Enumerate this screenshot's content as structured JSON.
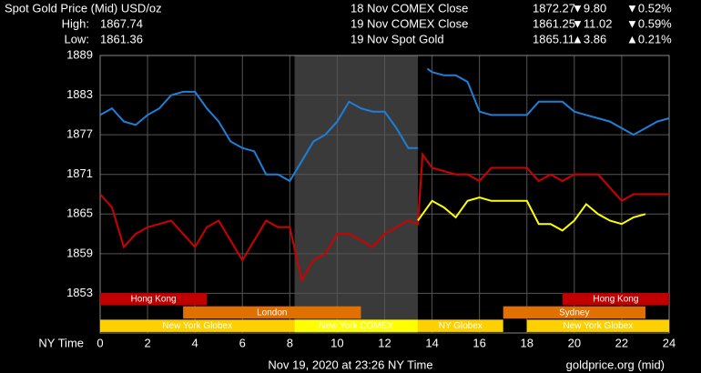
{
  "chart_data": {
    "type": "line",
    "title": "Spot Gold Price (Mid) USD/oz",
    "stats": [
      {
        "label": "High:",
        "value": "1867.74"
      },
      {
        "label": "Low:",
        "value": "1861.36"
      }
    ],
    "x_label": "NY Time",
    "footer": "Nov 19, 2020 at 23:26 NY Time",
    "source": "goldprice.org (mid)",
    "xlim": [
      0,
      24
    ],
    "xticks": [
      0,
      2,
      4,
      6,
      8,
      10,
      12,
      14,
      16,
      18,
      20,
      22,
      24
    ],
    "ylim": [
      1847,
      1889
    ],
    "yticks": [
      1853,
      1859,
      1865,
      1871,
      1877,
      1883,
      1889
    ],
    "grid": true,
    "shade": [
      8.2,
      13.4
    ],
    "shade_color": "#3a3a3a",
    "x": [
      0,
      0.5,
      1,
      1.5,
      2,
      2.5,
      3,
      3.5,
      4,
      4.5,
      5,
      5.5,
      6,
      6.5,
      7,
      7.5,
      8,
      8.5,
      9,
      9.5,
      10,
      10.5,
      11,
      11.5,
      12,
      12.5,
      13,
      13.4,
      13.6,
      13.8,
      14,
      14.5,
      15,
      15.5,
      16,
      16.5,
      17,
      17.5,
      18,
      18.5,
      19,
      19.5,
      20,
      20.5,
      21,
      21.5,
      22,
      22.5,
      23,
      23.5,
      24
    ],
    "series": [
      {
        "name": "18 Nov COMEX Close",
        "color": "#1e7fd8",
        "close": "1872.27",
        "change": "▼9.80",
        "pct": "▼0.52%",
        "change_color": "#ff2020",
        "values": [
          1880,
          1881,
          1879,
          1878.5,
          1880,
          1881,
          1883,
          1883.5,
          1883.5,
          1881,
          1879,
          1876,
          1875,
          1874.5,
          1871,
          1871,
          1870,
          1873,
          1876,
          1877,
          1879,
          1882,
          1881,
          1880.5,
          1880.5,
          1878,
          1875,
          1875,
          null,
          1887,
          1886.5,
          1886,
          1886,
          1885,
          1880.5,
          1880,
          1880,
          1880,
          1880,
          1882,
          1882,
          1882,
          1880.5,
          1880,
          1879.5,
          1879,
          1878,
          1877,
          1878,
          1879,
          1879.5
        ]
      },
      {
        "name": "19 Nov COMEX Close",
        "color": "#d00000",
        "close": "1861.25",
        "change": "▼11.02",
        "pct": "▼0.59%",
        "change_color": "#ff2020",
        "values": [
          1868,
          1866,
          1860,
          1862,
          1863,
          1863.5,
          1864,
          1862,
          1860,
          1863,
          1864,
          1861,
          1858,
          1861,
          1864,
          1863,
          1863,
          1855,
          1858,
          1859,
          1862,
          1862,
          1861,
          1860,
          1862,
          1863,
          1864,
          1863.5,
          1874,
          1873,
          1872,
          1871.5,
          1871,
          1871,
          1870,
          1872,
          1872,
          1872,
          1872,
          1870,
          1871,
          1870,
          1871,
          1871,
          1871,
          1869,
          1867,
          1868,
          1868,
          1868,
          1868
        ]
      },
      {
        "name": "19 Nov Spot Gold",
        "color": "#ffff00",
        "close": "1865.11",
        "change": "▲3.86",
        "pct": "▲0.21%",
        "change_color": "#20e020",
        "values": [
          null,
          null,
          null,
          null,
          null,
          null,
          null,
          null,
          null,
          null,
          null,
          null,
          null,
          null,
          null,
          null,
          null,
          null,
          null,
          null,
          null,
          null,
          null,
          null,
          null,
          null,
          null,
          1864,
          1865,
          1866,
          1867,
          1866,
          1864.5,
          1867,
          1867.5,
          1867,
          1867,
          1867,
          1867,
          1863.5,
          1863.5,
          1862.5,
          1864,
          1866.5,
          1865,
          1864,
          1863.5,
          1864.5,
          1865,
          null,
          null
        ]
      }
    ],
    "sessions": [
      {
        "label": "Hong Kong",
        "start": 0,
        "end": 4.5,
        "row": 0,
        "color": "#c00000"
      },
      {
        "label": "Hong Kong",
        "start": 19.5,
        "end": 24,
        "row": 0,
        "color": "#c00000"
      },
      {
        "label": "London",
        "start": 3.5,
        "end": 11,
        "row": 1,
        "color": "#e07000"
      },
      {
        "label": "Sydney",
        "start": 17,
        "end": 23,
        "row": 1,
        "color": "#e07000"
      },
      {
        "label": "New York Globex",
        "start": 0,
        "end": 8.2,
        "row": 2,
        "color": "#ffd000"
      },
      {
        "label": "New York COMEX",
        "start": 8.2,
        "end": 13.4,
        "row": 2,
        "color": "#ffff00"
      },
      {
        "label": "NY Globex",
        "start": 13.4,
        "end": 17,
        "row": 2,
        "color": "#ffd000"
      },
      {
        "label": "New York Globex",
        "start": 18,
        "end": 24,
        "row": 2,
        "color": "#ffd000"
      }
    ]
  }
}
